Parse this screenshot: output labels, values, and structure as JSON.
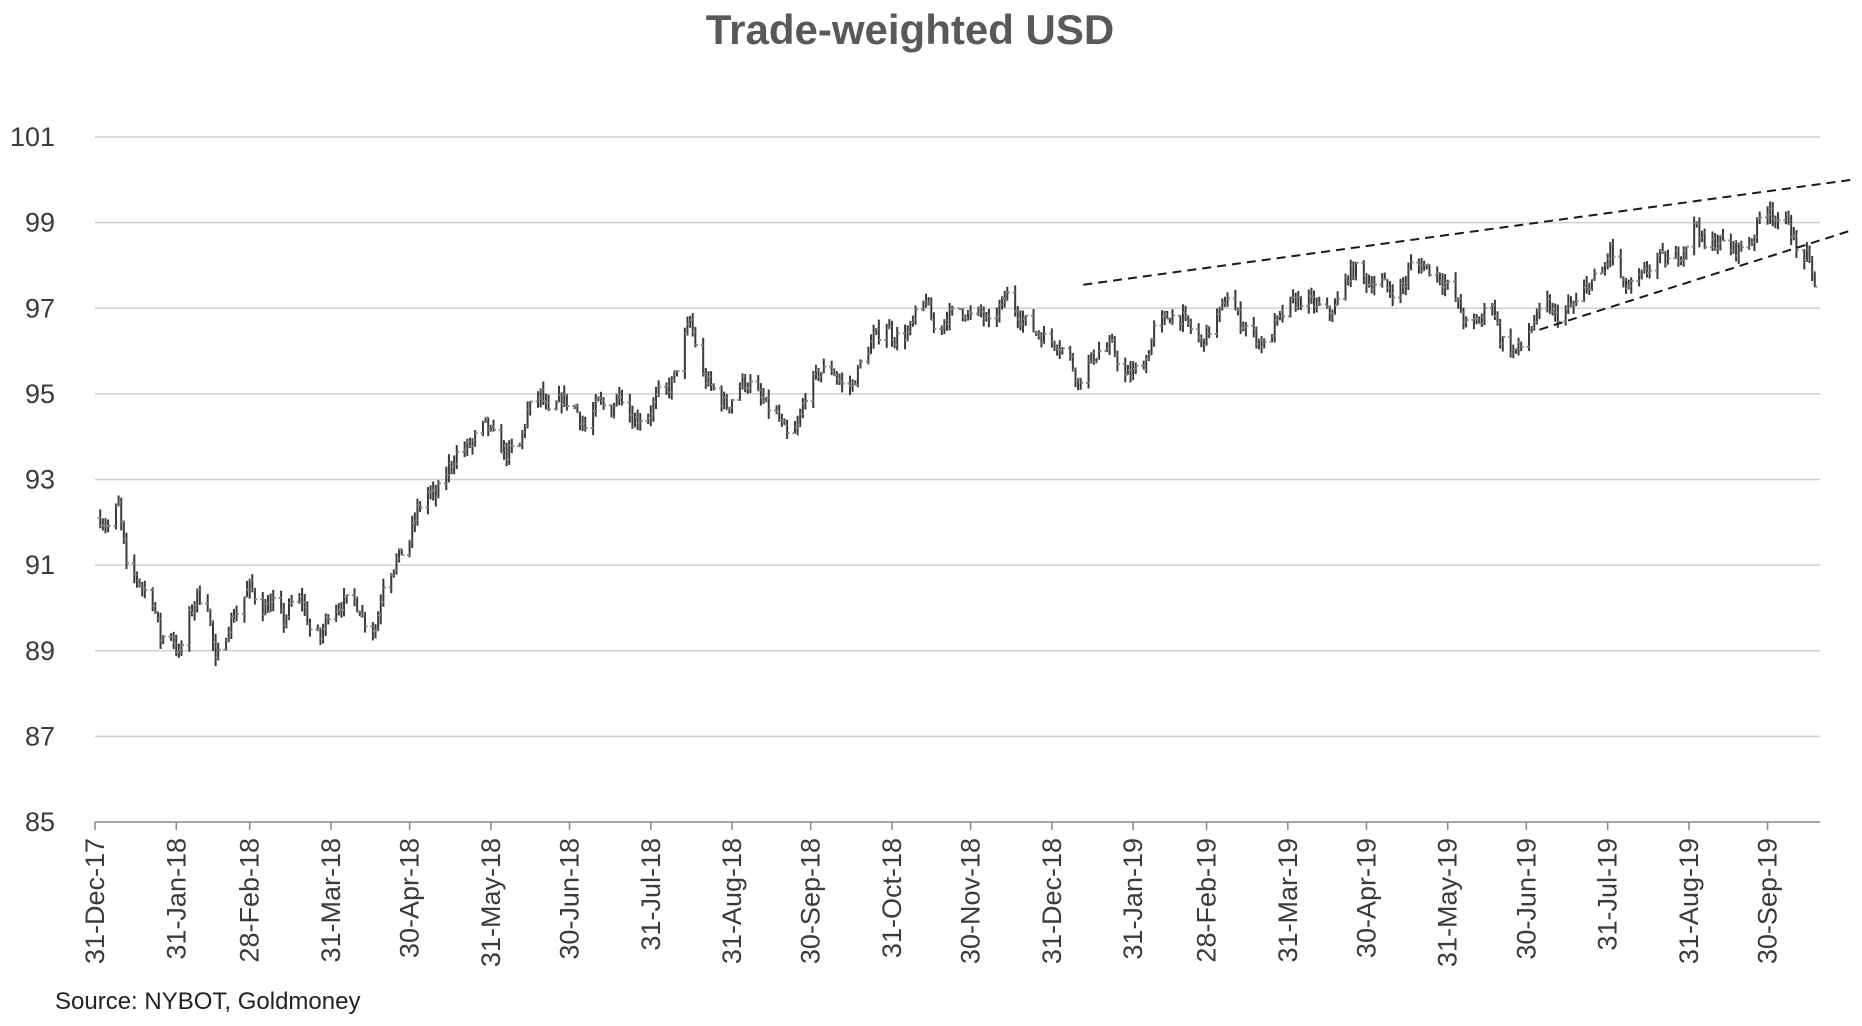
{
  "chart_data": {
    "type": "ohlc",
    "title": "Trade-weighted USD",
    "source": "Source: NYBOT, Goldmoney",
    "xlabel": "",
    "ylabel": "",
    "ylim": [
      85,
      101
    ],
    "y_ticks": [
      85,
      87,
      89,
      91,
      93,
      95,
      97,
      99,
      101
    ],
    "x_ticks": [
      "31-Dec-17",
      "31-Jan-18",
      "28-Feb-18",
      "31-Mar-18",
      "30-Apr-18",
      "31-May-18",
      "30-Jun-18",
      "31-Jul-18",
      "31-Aug-18",
      "30-Sep-18",
      "31-Oct-18",
      "30-Nov-18",
      "31-Dec-18",
      "31-Jan-19",
      "28-Feb-19",
      "31-Mar-19",
      "30-Apr-19",
      "31-May-19",
      "30-Jun-19",
      "31-Jul-19",
      "31-Aug-19",
      "30-Sep-19"
    ],
    "x_range": [
      "2017-12-31",
      "2019-10-20"
    ],
    "grid": true,
    "legend": "none",
    "colors": {
      "bar": "#3a3a3a",
      "grid": "#d0d0d0",
      "axis": "#888888",
      "trendline": "#1a1a1a",
      "title": "#595959"
    },
    "path_points": [
      [
        "2018-01-02",
        92.1
      ],
      [
        "2018-01-05",
        91.9
      ],
      [
        "2018-01-09",
        92.4
      ],
      [
        "2018-01-11",
        91.5
      ],
      [
        "2018-01-12",
        90.9
      ],
      [
        "2018-01-16",
        90.7
      ],
      [
        "2018-01-19",
        90.4
      ],
      [
        "2018-01-22",
        90.2
      ],
      [
        "2018-01-25",
        89.3
      ],
      [
        "2018-01-29",
        89.4
      ],
      [
        "2018-02-01",
        88.9
      ],
      [
        "2018-02-05",
        89.8
      ],
      [
        "2018-02-08",
        90.3
      ],
      [
        "2018-02-12",
        90.1
      ],
      [
        "2018-02-15",
        88.7
      ],
      [
        "2018-02-20",
        89.6
      ],
      [
        "2018-02-23",
        89.9
      ],
      [
        "2018-02-28",
        90.5
      ],
      [
        "2018-03-05",
        90.0
      ],
      [
        "2018-03-09",
        90.1
      ],
      [
        "2018-03-13",
        89.7
      ],
      [
        "2018-03-16",
        90.1
      ],
      [
        "2018-03-20",
        90.2
      ],
      [
        "2018-03-23",
        89.5
      ],
      [
        "2018-03-27",
        89.3
      ],
      [
        "2018-03-30",
        89.9
      ],
      [
        "2018-04-04",
        90.1
      ],
      [
        "2018-04-09",
        90.2
      ],
      [
        "2018-04-13",
        89.7
      ],
      [
        "2018-04-17",
        89.5
      ],
      [
        "2018-04-20",
        90.6
      ],
      [
        "2018-04-25",
        91.1
      ],
      [
        "2018-04-30",
        91.6
      ],
      [
        "2018-05-03",
        92.3
      ],
      [
        "2018-05-07",
        92.7
      ],
      [
        "2018-05-10",
        92.6
      ],
      [
        "2018-05-15",
        93.3
      ],
      [
        "2018-05-18",
        93.6
      ],
      [
        "2018-05-23",
        93.8
      ],
      [
        "2018-05-29",
        94.3
      ],
      [
        "2018-06-01",
        94.0
      ],
      [
        "2018-06-06",
        93.6
      ],
      [
        "2018-06-11",
        93.8
      ],
      [
        "2018-06-14",
        94.6
      ],
      [
        "2018-06-19",
        95.0
      ],
      [
        "2018-06-22",
        94.5
      ],
      [
        "2018-06-27",
        94.9
      ],
      [
        "2018-07-02",
        94.7
      ],
      [
        "2018-07-06",
        94.2
      ],
      [
        "2018-07-11",
        94.8
      ],
      [
        "2018-07-16",
        94.6
      ],
      [
        "2018-07-19",
        95.1
      ],
      [
        "2018-07-24",
        94.4
      ],
      [
        "2018-07-30",
        94.5
      ],
      [
        "2018-08-03",
        95.0
      ],
      [
        "2018-08-08",
        95.2
      ],
      [
        "2018-08-13",
        96.3
      ],
      [
        "2018-08-15",
        96.7
      ],
      [
        "2018-08-20",
        95.4
      ],
      [
        "2018-08-24",
        95.1
      ],
      [
        "2018-08-29",
        94.7
      ],
      [
        "2018-09-04",
        95.3
      ],
      [
        "2018-09-07",
        95.2
      ],
      [
        "2018-09-12",
        94.8
      ],
      [
        "2018-09-17",
        94.5
      ],
      [
        "2018-09-21",
        94.0
      ],
      [
        "2018-09-25",
        94.2
      ],
      [
        "2018-09-28",
        95.0
      ],
      [
        "2018-10-03",
        95.5
      ],
      [
        "2018-10-08",
        95.6
      ],
      [
        "2018-10-12",
        95.2
      ],
      [
        "2018-10-16",
        95.2
      ],
      [
        "2018-10-19",
        95.7
      ],
      [
        "2018-10-24",
        96.3
      ],
      [
        "2018-10-29",
        96.6
      ],
      [
        "2018-11-01",
        96.3
      ],
      [
        "2018-11-06",
        96.4
      ],
      [
        "2018-11-09",
        96.8
      ],
      [
        "2018-11-13",
        97.2
      ],
      [
        "2018-11-16",
        96.5
      ],
      [
        "2018-11-21",
        96.8
      ],
      [
        "2018-11-26",
        97.0
      ],
      [
        "2018-11-30",
        96.8
      ],
      [
        "2018-12-04",
        96.9
      ],
      [
        "2018-12-07",
        96.6
      ],
      [
        "2018-12-12",
        97.1
      ],
      [
        "2018-12-14",
        97.3
      ],
      [
        "2018-12-19",
        96.8
      ],
      [
        "2018-12-24",
        96.5
      ],
      [
        "2018-12-28",
        96.3
      ],
      [
        "2019-01-02",
        96.2
      ],
      [
        "2019-01-07",
        95.8
      ],
      [
        "2019-01-10",
        95.3
      ],
      [
        "2019-01-15",
        95.8
      ],
      [
        "2019-01-18",
        96.0
      ],
      [
        "2019-01-23",
        96.1
      ],
      [
        "2019-01-28",
        95.4
      ],
      [
        "2019-01-31",
        95.5
      ],
      [
        "2019-02-05",
        95.8
      ],
      [
        "2019-02-08",
        96.5
      ],
      [
        "2019-02-13",
        96.8
      ],
      [
        "2019-02-18",
        96.8
      ],
      [
        "2019-02-21",
        96.6
      ],
      [
        "2019-02-26",
        96.2
      ],
      [
        "2019-03-01",
        96.5
      ],
      [
        "2019-03-06",
        97.0
      ],
      [
        "2019-03-08",
        97.3
      ],
      [
        "2019-03-13",
        96.7
      ],
      [
        "2019-03-18",
        96.4
      ],
      [
        "2019-03-22",
        96.1
      ],
      [
        "2019-03-27",
        96.7
      ],
      [
        "2019-04-01",
        97.1
      ],
      [
        "2019-04-05",
        97.2
      ],
      [
        "2019-04-10",
        97.1
      ],
      [
        "2019-04-15",
        96.9
      ],
      [
        "2019-04-18",
        97.0
      ],
      [
        "2019-04-23",
        97.8
      ],
      [
        "2019-04-26",
        97.9
      ],
      [
        "2019-05-01",
        97.6
      ],
      [
        "2019-05-06",
        97.6
      ],
      [
        "2019-05-09",
        97.4
      ],
      [
        "2019-05-14",
        97.5
      ],
      [
        "2019-05-17",
        98.0
      ],
      [
        "2019-05-22",
        98.0
      ],
      [
        "2019-05-27",
        97.8
      ],
      [
        "2019-05-31",
        97.5
      ],
      [
        "2019-06-04",
        97.1
      ],
      [
        "2019-06-07",
        96.6
      ],
      [
        "2019-06-12",
        96.7
      ],
      [
        "2019-06-17",
        97.2
      ],
      [
        "2019-06-20",
        96.3
      ],
      [
        "2019-06-25",
        96.0
      ],
      [
        "2019-06-28",
        96.1
      ],
      [
        "2019-07-03",
        96.7
      ],
      [
        "2019-07-08",
        97.1
      ],
      [
        "2019-07-11",
        96.8
      ],
      [
        "2019-07-16",
        97.0
      ],
      [
        "2019-07-19",
        97.1
      ],
      [
        "2019-07-24",
        97.6
      ],
      [
        "2019-07-29",
        97.8
      ],
      [
        "2019-08-01",
        98.4
      ],
      [
        "2019-08-06",
        97.5
      ],
      [
        "2019-08-09",
        97.5
      ],
      [
        "2019-08-14",
        97.8
      ],
      [
        "2019-08-19",
        98.2
      ],
      [
        "2019-08-23",
        98.1
      ],
      [
        "2019-08-28",
        98.3
      ],
      [
        "2019-09-03",
        99.0
      ],
      [
        "2019-09-06",
        98.4
      ],
      [
        "2019-09-11",
        98.6
      ],
      [
        "2019-09-16",
        98.4
      ],
      [
        "2019-09-19",
        98.4
      ],
      [
        "2019-09-24",
        98.6
      ],
      [
        "2019-09-27",
        99.1
      ],
      [
        "2019-10-01",
        99.4
      ],
      [
        "2019-10-04",
        98.9
      ],
      [
        "2019-10-08",
        99.1
      ],
      [
        "2019-10-11",
        98.3
      ],
      [
        "2019-10-15",
        98.2
      ],
      [
        "2019-10-18",
        97.6
      ]
    ],
    "trendlines": [
      {
        "from": [
          "2019-01-12",
          97.55
        ],
        "to": [
          "2019-11-01",
          100.0
        ]
      },
      {
        "from": [
          "2019-07-05",
          96.5
        ],
        "to": [
          "2019-10-31",
          98.8
        ]
      }
    ]
  },
  "source_note": "Source: NYBOT, Goldmoney"
}
